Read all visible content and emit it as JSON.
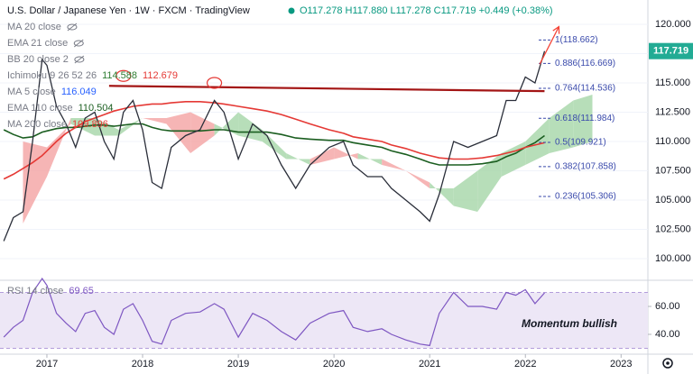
{
  "chart_data": [
    {
      "type": "line",
      "title": "U.S. Dollar / Japanese Yen · 1W · FXCM · TradingView",
      "ohlc": "O117.278 H117.880 L117.278 C117.719 +0.449 (+0.38%)",
      "x": [
        2016.55,
        2016.65,
        2016.75,
        2016.85,
        2016.95,
        2017.0,
        2017.1,
        2017.2,
        2017.3,
        2017.4,
        2017.5,
        2017.6,
        2017.7,
        2017.8,
        2017.9,
        2018.0,
        2018.1,
        2018.2,
        2018.3,
        2018.45,
        2018.6,
        2018.75,
        2018.85,
        2019.0,
        2019.15,
        2019.3,
        2019.45,
        2019.6,
        2019.75,
        2019.95,
        2020.1,
        2020.2,
        2020.35,
        2020.5,
        2020.6,
        2020.75,
        2020.9,
        2021.0,
        2021.1,
        2021.25,
        2021.4,
        2021.55,
        2021.7,
        2021.8,
        2021.9,
        2022.0,
        2022.1,
        2022.2
      ],
      "values": [
        101.5,
        103.5,
        104,
        110,
        117,
        116.5,
        113,
        111.5,
        109.5,
        112,
        112.5,
        110,
        108.5,
        112.5,
        113.5,
        111,
        106.5,
        106,
        109.5,
        110.5,
        111,
        113.5,
        112.5,
        108.5,
        111.5,
        110.5,
        108,
        106,
        108,
        109.5,
        110,
        108,
        107,
        107,
        106,
        105,
        104,
        103.2,
        105.5,
        110,
        109.5,
        110,
        110.5,
        113.5,
        113.5,
        115.5,
        115,
        117.719
      ],
      "color": "#2a2e39",
      "last_price": 117.719,
      "last_price_color": "#22ab94",
      "indicators": [
        {
          "name": "MA 20 close",
          "hidden": true
        },
        {
          "name": "EMA 21 close",
          "hidden": true
        },
        {
          "name": "BB 20 close 2",
          "hidden": true
        },
        {
          "name": "Ichimoku 9 26 52 26",
          "readings": [
            114.588,
            112.679
          ],
          "colors": [
            "#2e7d32",
            "#e53935"
          ],
          "x": [
            2016.75,
            2017.0,
            2017.25,
            2017.5,
            2017.75,
            2018.0,
            2018.25,
            2018.5,
            2018.75,
            2019.0,
            2019.25,
            2019.5,
            2019.75,
            2020.0,
            2020.25,
            2020.5,
            2020.75,
            2021.0,
            2021.25,
            2021.5,
            2021.75,
            2022.0,
            2022.25,
            2022.5,
            2022.7
          ],
          "span_a": [
            103,
            107,
            112,
            112,
            111,
            112,
            111.5,
            109,
            110.5,
            112.5,
            111,
            109,
            108,
            108.5,
            109,
            108,
            107.5,
            106,
            106,
            107.5,
            109,
            110,
            112,
            113.5,
            114
          ],
          "span_b": [
            110,
            109.5,
            111.5,
            110.5,
            110.5,
            112,
            112,
            112.5,
            111.5,
            110.5,
            110,
            108.5,
            108.5,
            109.5,
            108.5,
            108.5,
            107.5,
            106.5,
            104.5,
            104,
            107,
            108,
            109,
            109.5,
            110
          ],
          "cloud_colors": [
            "#a5d6a7",
            "#f4a3a3"
          ]
        },
        {
          "name": "MA 5 close",
          "readings": [
            116.049
          ],
          "colors": [
            "#2962ff"
          ]
        },
        {
          "name": "EMA 110 close",
          "readings": [
            110.504
          ],
          "colors": [
            "#1b5e20"
          ],
          "values": [
            111,
            110.6,
            110.3,
            110.4,
            110.8,
            110.9,
            111.1,
            111.2,
            111.2,
            111.3,
            111.4,
            111.4,
            111.3,
            111.4,
            111.5,
            111.5,
            111.2,
            111,
            110.9,
            110.9,
            110.9,
            111,
            111,
            110.8,
            110.8,
            110.8,
            110.6,
            110.3,
            110.2,
            110.1,
            110.1,
            109.9,
            109.7,
            109.5,
            109.2,
            108.9,
            108.5,
            108.2,
            108,
            108,
            108,
            108.1,
            108.3,
            108.7,
            109,
            109.5,
            109.9,
            110.504
          ]
        },
        {
          "name": "MA 200 close",
          "readings": [
            109.896
          ],
          "colors": [
            "#e53935"
          ],
          "values": [
            106.8,
            107.2,
            107.7,
            108.2,
            108.8,
            109.2,
            110,
            110.7,
            111.2,
            111.7,
            112,
            112.3,
            112.6,
            112.8,
            113,
            113.1,
            113.2,
            113.2,
            113.3,
            113.4,
            113.4,
            113.3,
            113.2,
            113,
            112.8,
            112.6,
            112.3,
            111.9,
            111.5,
            111,
            110.7,
            110.4,
            110.2,
            110,
            109.7,
            109.4,
            109,
            108.8,
            108.6,
            108.5,
            108.5,
            108.6,
            108.8,
            109,
            109.2,
            109.5,
            109.7,
            109.896
          ]
        }
      ],
      "fib_levels": [
        {
          "value": 118.662,
          "label": "1(118.662)"
        },
        {
          "value": 116.669,
          "label": "0.886(116.669)"
        },
        {
          "value": 114.536,
          "label": "0.764(114.536)"
        },
        {
          "value": 111.984,
          "label": "0.618(111.984)"
        },
        {
          "value": 109.921,
          "label": "0.5(109.921)"
        },
        {
          "value": 107.858,
          "label": "0.382(107.858)"
        },
        {
          "value": 105.306,
          "label": "0.236(105.306)"
        }
      ],
      "fib_color": "#3949ab",
      "trendline": {
        "x": [
          2017.65,
          2022.2
        ],
        "y": [
          114.75,
          114.3
        ],
        "color": "#a31515"
      },
      "highlights": [
        {
          "x": 2017.8,
          "y": 115.6
        },
        {
          "x": 2018.75,
          "y": 115.0
        }
      ],
      "highlight_color": "#e53935",
      "arrow": {
        "x": [
          2022.15,
          2022.35
        ],
        "y": [
          116.6,
          119.8
        ],
        "color": "#f44336"
      },
      "xlim": [
        2016.51,
        2023.28
      ],
      "ylim": [
        98.23,
        122.08
      ],
      "yticks": [
        {
          "value": 100,
          "label": "100.000"
        },
        {
          "value": 102.5,
          "label": "102.500"
        },
        {
          "value": 105,
          "label": "105.000"
        },
        {
          "value": 107.5,
          "label": "107.500"
        },
        {
          "value": 110,
          "label": "110.000"
        },
        {
          "value": 112.5,
          "label": "112.500"
        },
        {
          "value": 115,
          "label": "115.000"
        },
        {
          "value": 117.5,
          "label": "117.500"
        },
        {
          "value": 120,
          "label": "120.000"
        }
      ],
      "grid": true
    },
    {
      "type": "line",
      "name": "RSI 14 close",
      "reading": 69.65,
      "x": [
        2016.55,
        2016.65,
        2016.75,
        2016.85,
        2016.95,
        2017.0,
        2017.1,
        2017.2,
        2017.3,
        2017.4,
        2017.5,
        2017.6,
        2017.7,
        2017.8,
        2017.9,
        2018.0,
        2018.1,
        2018.2,
        2018.3,
        2018.45,
        2018.6,
        2018.75,
        2018.85,
        2019.0,
        2019.15,
        2019.3,
        2019.45,
        2019.6,
        2019.75,
        2019.95,
        2020.1,
        2020.2,
        2020.35,
        2020.5,
        2020.6,
        2020.75,
        2020.9,
        2021.0,
        2021.1,
        2021.25,
        2021.4,
        2021.55,
        2021.7,
        2021.8,
        2021.9,
        2022.0,
        2022.1,
        2022.2
      ],
      "values": [
        38,
        45,
        50,
        70,
        80,
        75,
        55,
        48,
        42,
        55,
        57,
        45,
        40,
        58,
        62,
        50,
        35,
        33,
        50,
        55,
        56,
        62,
        58,
        38,
        55,
        50,
        42,
        36,
        48,
        55,
        57,
        45,
        42,
        44,
        40,
        36,
        33,
        32,
        55,
        70,
        60,
        60,
        58,
        70,
        68,
        72,
        62,
        69.65
      ],
      "color": "#7e57c2",
      "band": [
        30,
        70
      ],
      "band_color": "#ede7f6",
      "annotation": "Momentum bullish",
      "xlim": [
        2016.51,
        2023.28
      ],
      "ylim": [
        26.45,
        78.06
      ],
      "yticks": [
        {
          "value": 40,
          "label": "40.00"
        },
        {
          "value": 60,
          "label": "60.00"
        }
      ],
      "xticks": [
        2017,
        2018,
        2019,
        2020,
        2021,
        2022,
        2023
      ]
    }
  ]
}
